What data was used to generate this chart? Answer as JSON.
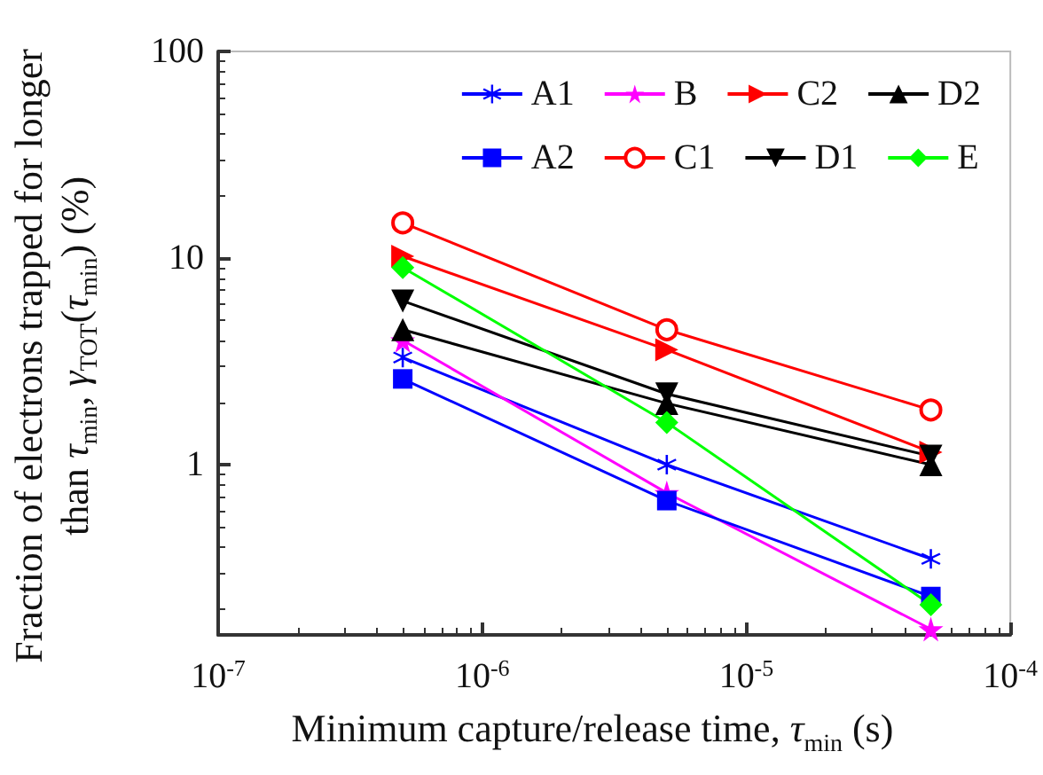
{
  "chart_data": {
    "type": "line",
    "xlabel": "Minimum capture/release time, τ$_{min}$ (s)",
    "ylabel": "Fraction of electrons trapped for longer than τ$_{min}$, γ$_{TOT}$(τ$_{min}$) (%)",
    "x": [
      5e-07,
      5e-06,
      5e-05
    ],
    "xlim": [
      1e-07,
      0.0001
    ],
    "xticks": [
      {
        "value": 1e-07,
        "label": "10$^{-7}$"
      },
      {
        "value": 1e-06,
        "label": "10$^{-6}$"
      },
      {
        "value": 1e-05,
        "label": "10$^{-5}$"
      },
      {
        "value": 0.0001,
        "label": "10$^{-4}$"
      }
    ],
    "ylim": [
      0.15,
      100
    ],
    "yticks": [
      1,
      10,
      100
    ],
    "log": "xy",
    "grid": false,
    "legend": "top right",
    "series": [
      {
        "name": "A1",
        "color": "#0000ff",
        "marker": "cross",
        "values": [
          3.3,
          1.0,
          0.35
        ]
      },
      {
        "name": "B",
        "color": "#ff00ff",
        "marker": "star",
        "values": [
          4.0,
          0.73,
          0.16
        ]
      },
      {
        "name": "C2",
        "color": "#ff0000",
        "marker": "triangle-right",
        "values": [
          10.2,
          3.6,
          1.15
        ]
      },
      {
        "name": "D2",
        "color": "#000000",
        "marker": "triangle",
        "values": [
          4.5,
          1.98,
          1.0
        ]
      },
      {
        "name": "A2",
        "color": "#0000ff",
        "marker": "square",
        "values": [
          2.6,
          0.67,
          0.23
        ]
      },
      {
        "name": "C1",
        "color": "#ff0000",
        "marker": "circle",
        "values": [
          14.8,
          4.5,
          1.84
        ]
      },
      {
        "name": "D1",
        "color": "#000000",
        "marker": "triangle-down",
        "values": [
          6.2,
          2.2,
          1.1
        ]
      },
      {
        "name": "E",
        "color": "#00ff00",
        "marker": "diamond",
        "values": [
          9.0,
          1.6,
          0.21
        ]
      }
    ]
  }
}
